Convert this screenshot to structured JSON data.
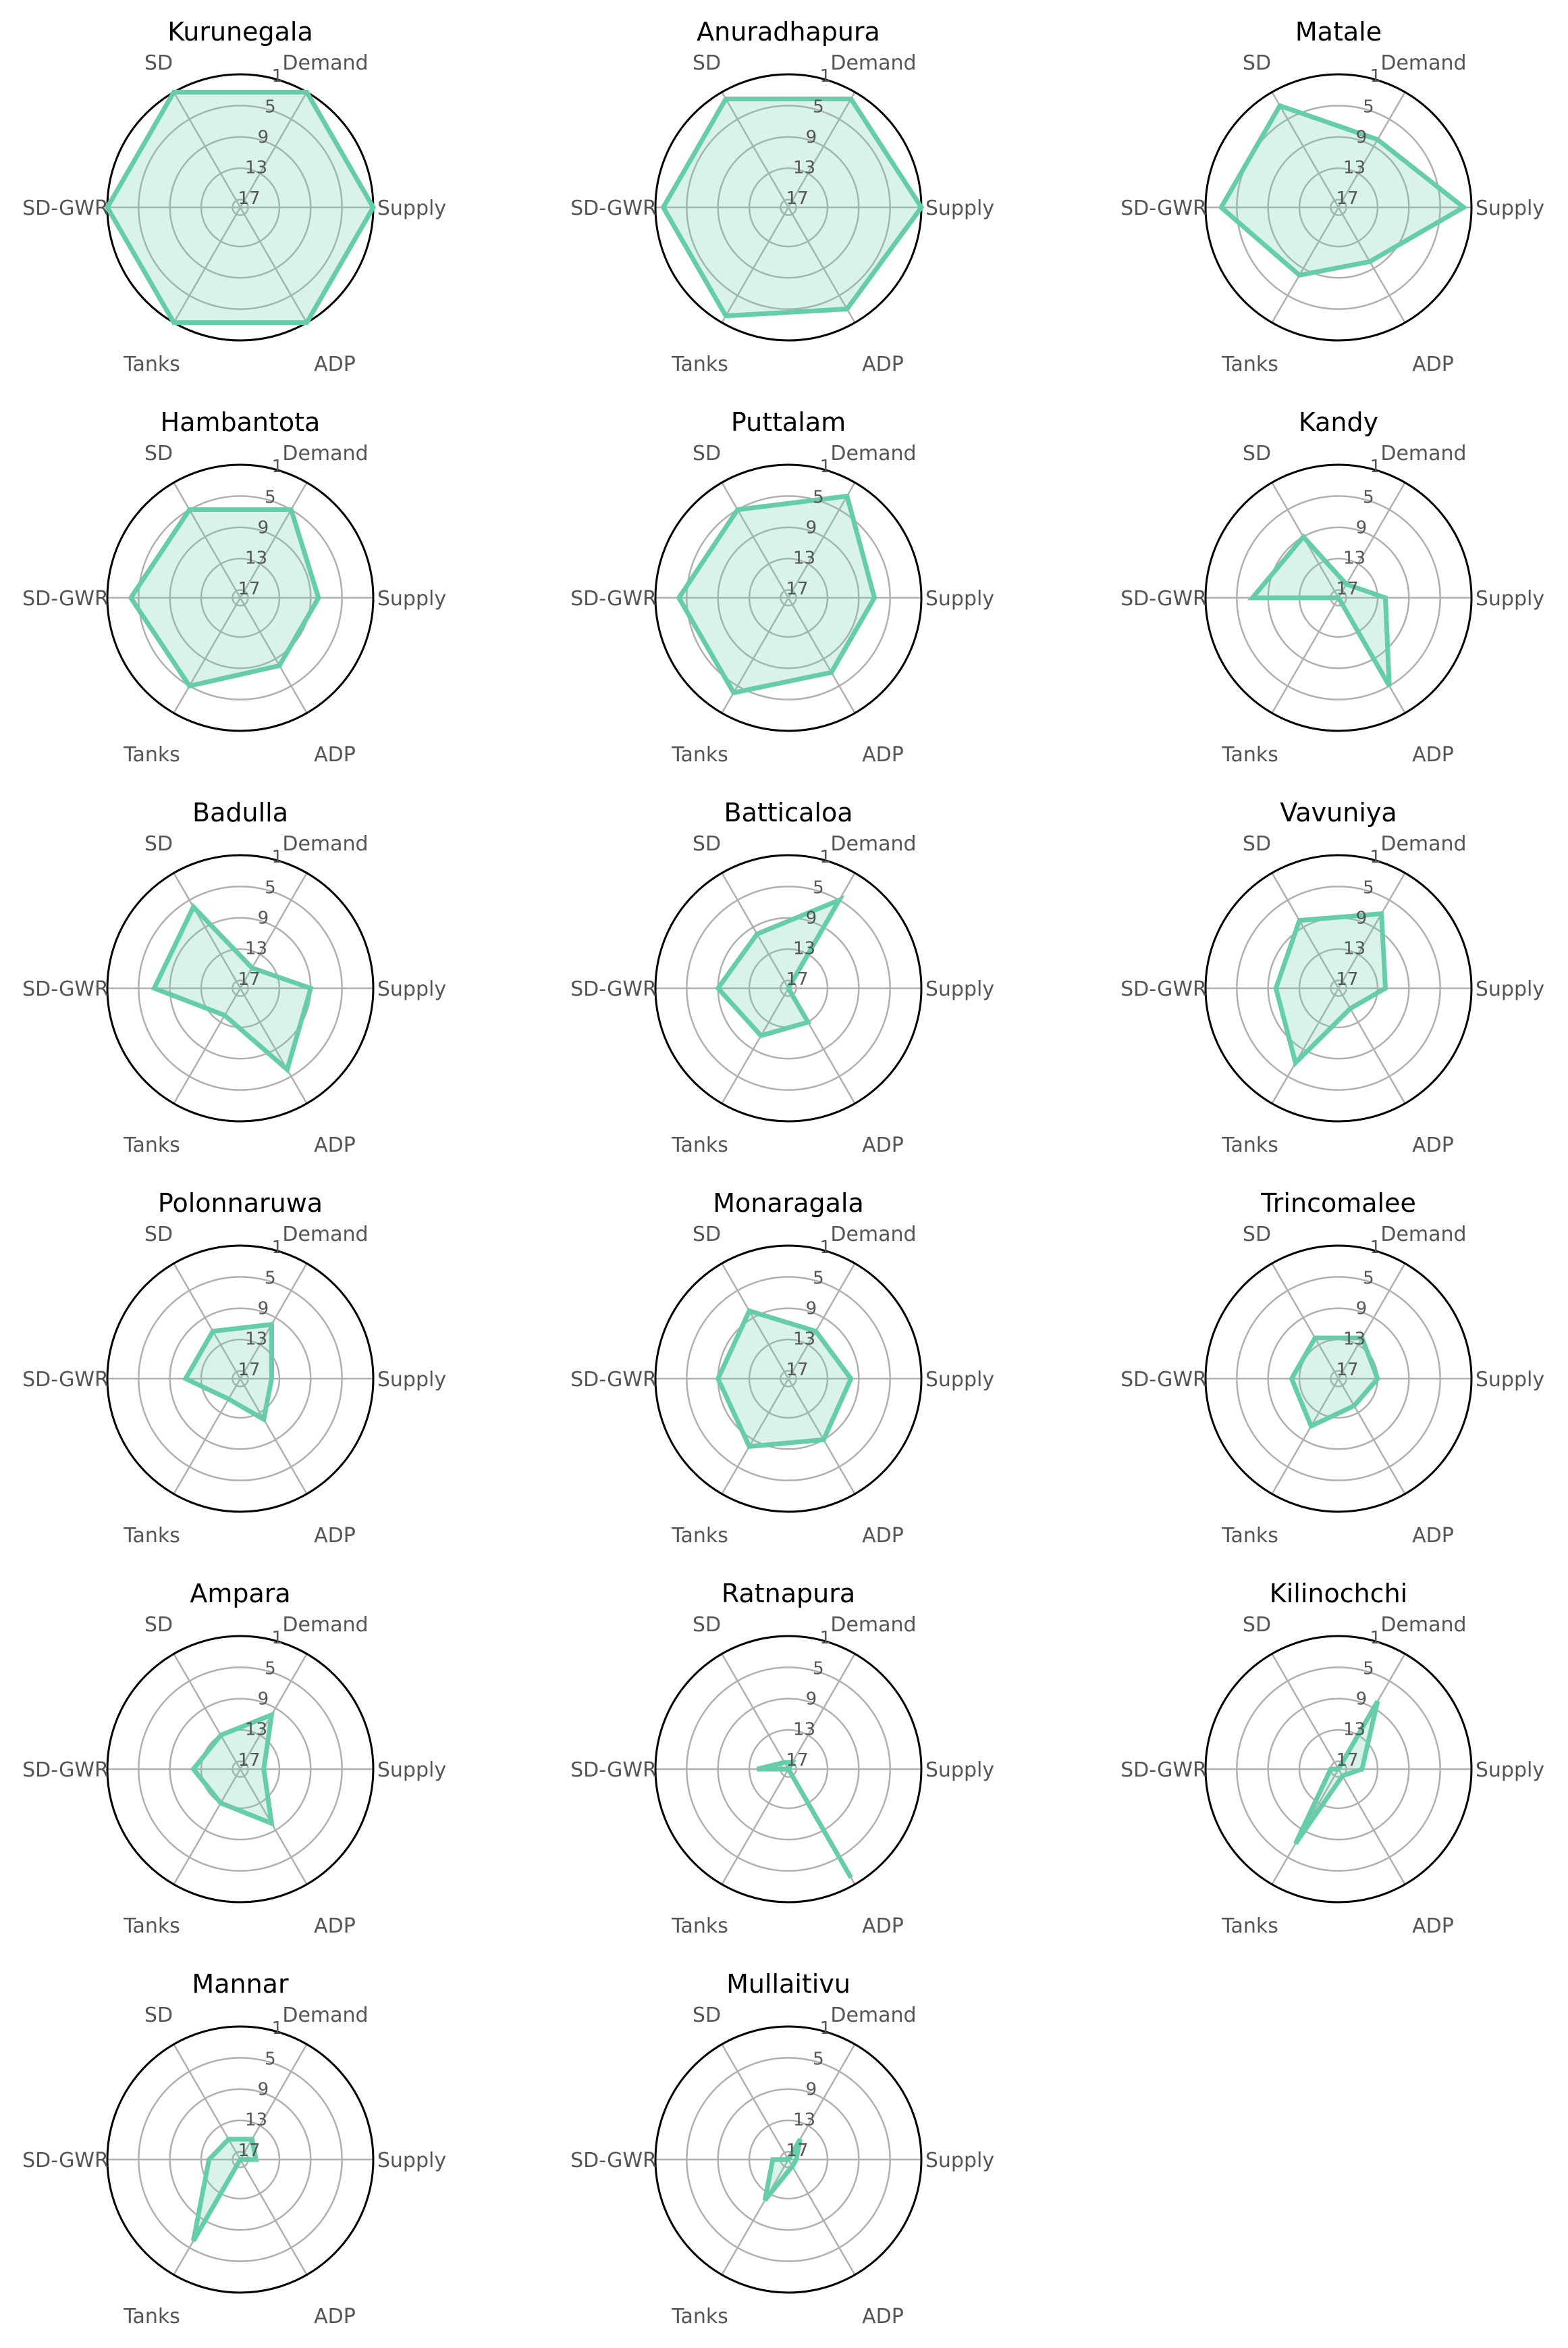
{
  "chart_data": {
    "type": "radar",
    "axes": [
      "Supply",
      "Demand",
      "SD",
      "SD-GWR",
      "Tanks",
      "ADP"
    ],
    "rank_ticks": [
      1,
      5,
      9,
      13,
      17
    ],
    "rank_range": [
      1,
      18
    ],
    "grid": true,
    "series_color": "#66cdaa",
    "fill_color": "#66cdaa",
    "fill_opacity": 0.25,
    "panels": [
      {
        "title": "Kurunegala",
        "values": {
          "Supply": 1,
          "Demand": 1,
          "SD": 1,
          "SD-GWR": 1,
          "Tanks": 1,
          "ADP": 1
        }
      },
      {
        "title": "Anuradhapura",
        "values": {
          "Supply": 1,
          "Demand": 2,
          "SD": 2,
          "SD-GWR": 2,
          "Tanks": 2,
          "ADP": 3
        }
      },
      {
        "title": "Matale",
        "values": {
          "Supply": 2,
          "Demand": 8,
          "SD": 3,
          "SD-GWR": 3,
          "Tanks": 8,
          "ADP": 10
        }
      },
      {
        "title": "Hambantota",
        "values": {
          "Supply": 8,
          "Demand": 5,
          "SD": 5,
          "SD-GWR": 4,
          "Tanks": 5,
          "ADP": 8
        }
      },
      {
        "title": "Puttalam",
        "values": {
          "Supply": 7,
          "Demand": 3,
          "SD": 5,
          "SD-GWR": 4,
          "Tanks": 4,
          "ADP": 7
        }
      },
      {
        "title": "Kandy",
        "values": {
          "Supply": 12,
          "Demand": 16,
          "SD": 9,
          "SD-GWR": 7,
          "Tanks": 18,
          "ADP": 5
        }
      },
      {
        "title": "Badulla",
        "values": {
          "Supply": 9,
          "Demand": 15,
          "SD": 6,
          "SD-GWR": 7,
          "Tanks": 14,
          "ADP": 6
        }
      },
      {
        "title": "Batticaloa",
        "values": {
          "Supply": 18,
          "Demand": 5,
          "SD": 10,
          "SD-GWR": 9,
          "Tanks": 11,
          "ADP": 13
        }
      },
      {
        "title": "Vavuniya",
        "values": {
          "Supply": 12,
          "Demand": 7,
          "SD": 8,
          "SD-GWR": 10,
          "Tanks": 7,
          "ADP": 15
        }
      },
      {
        "title": "Polonnaruwa",
        "values": {
          "Supply": 14,
          "Demand": 10,
          "SD": 11,
          "SD-GWR": 11,
          "Tanks": 15,
          "ADP": 12
        }
      },
      {
        "title": "Monaragala",
        "values": {
          "Supply": 10,
          "Demand": 11,
          "SD": 8,
          "SD-GWR": 9,
          "Tanks": 8,
          "ADP": 9
        }
      },
      {
        "title": "Trincomalee",
        "values": {
          "Supply": 13,
          "Demand": 12,
          "SD": 12,
          "SD-GWR": 12,
          "Tanks": 11,
          "ADP": 14
        }
      },
      {
        "title": "Ampara",
        "values": {
          "Supply": 15,
          "Demand": 10,
          "SD": 13,
          "SD-GWR": 12,
          "Tanks": 13,
          "ADP": 10
        }
      },
      {
        "title": "Ratnapura",
        "values": {
          "Supply": 18,
          "Demand": 17,
          "SD": 17,
          "SD-GWR": 14,
          "Tanks": 18,
          "ADP": 2
        }
      },
      {
        "title": "Kilinochchi",
        "values": {
          "Supply": 15,
          "Demand": 8,
          "SD": 18,
          "SD-GWR": 17,
          "Tanks": 7,
          "ADP": 17
        }
      },
      {
        "title": "Mannar",
        "values": {
          "Supply": 16,
          "Demand": 15,
          "SD": 15,
          "SD-GWR": 14,
          "Tanks": 6,
          "ADP": 18
        }
      },
      {
        "title": "Mullaitivu",
        "values": {
          "Supply": 17,
          "Demand": 15,
          "SD": 18,
          "SD-GWR": 16,
          "Tanks": 12,
          "ADP": 17
        }
      }
    ]
  }
}
